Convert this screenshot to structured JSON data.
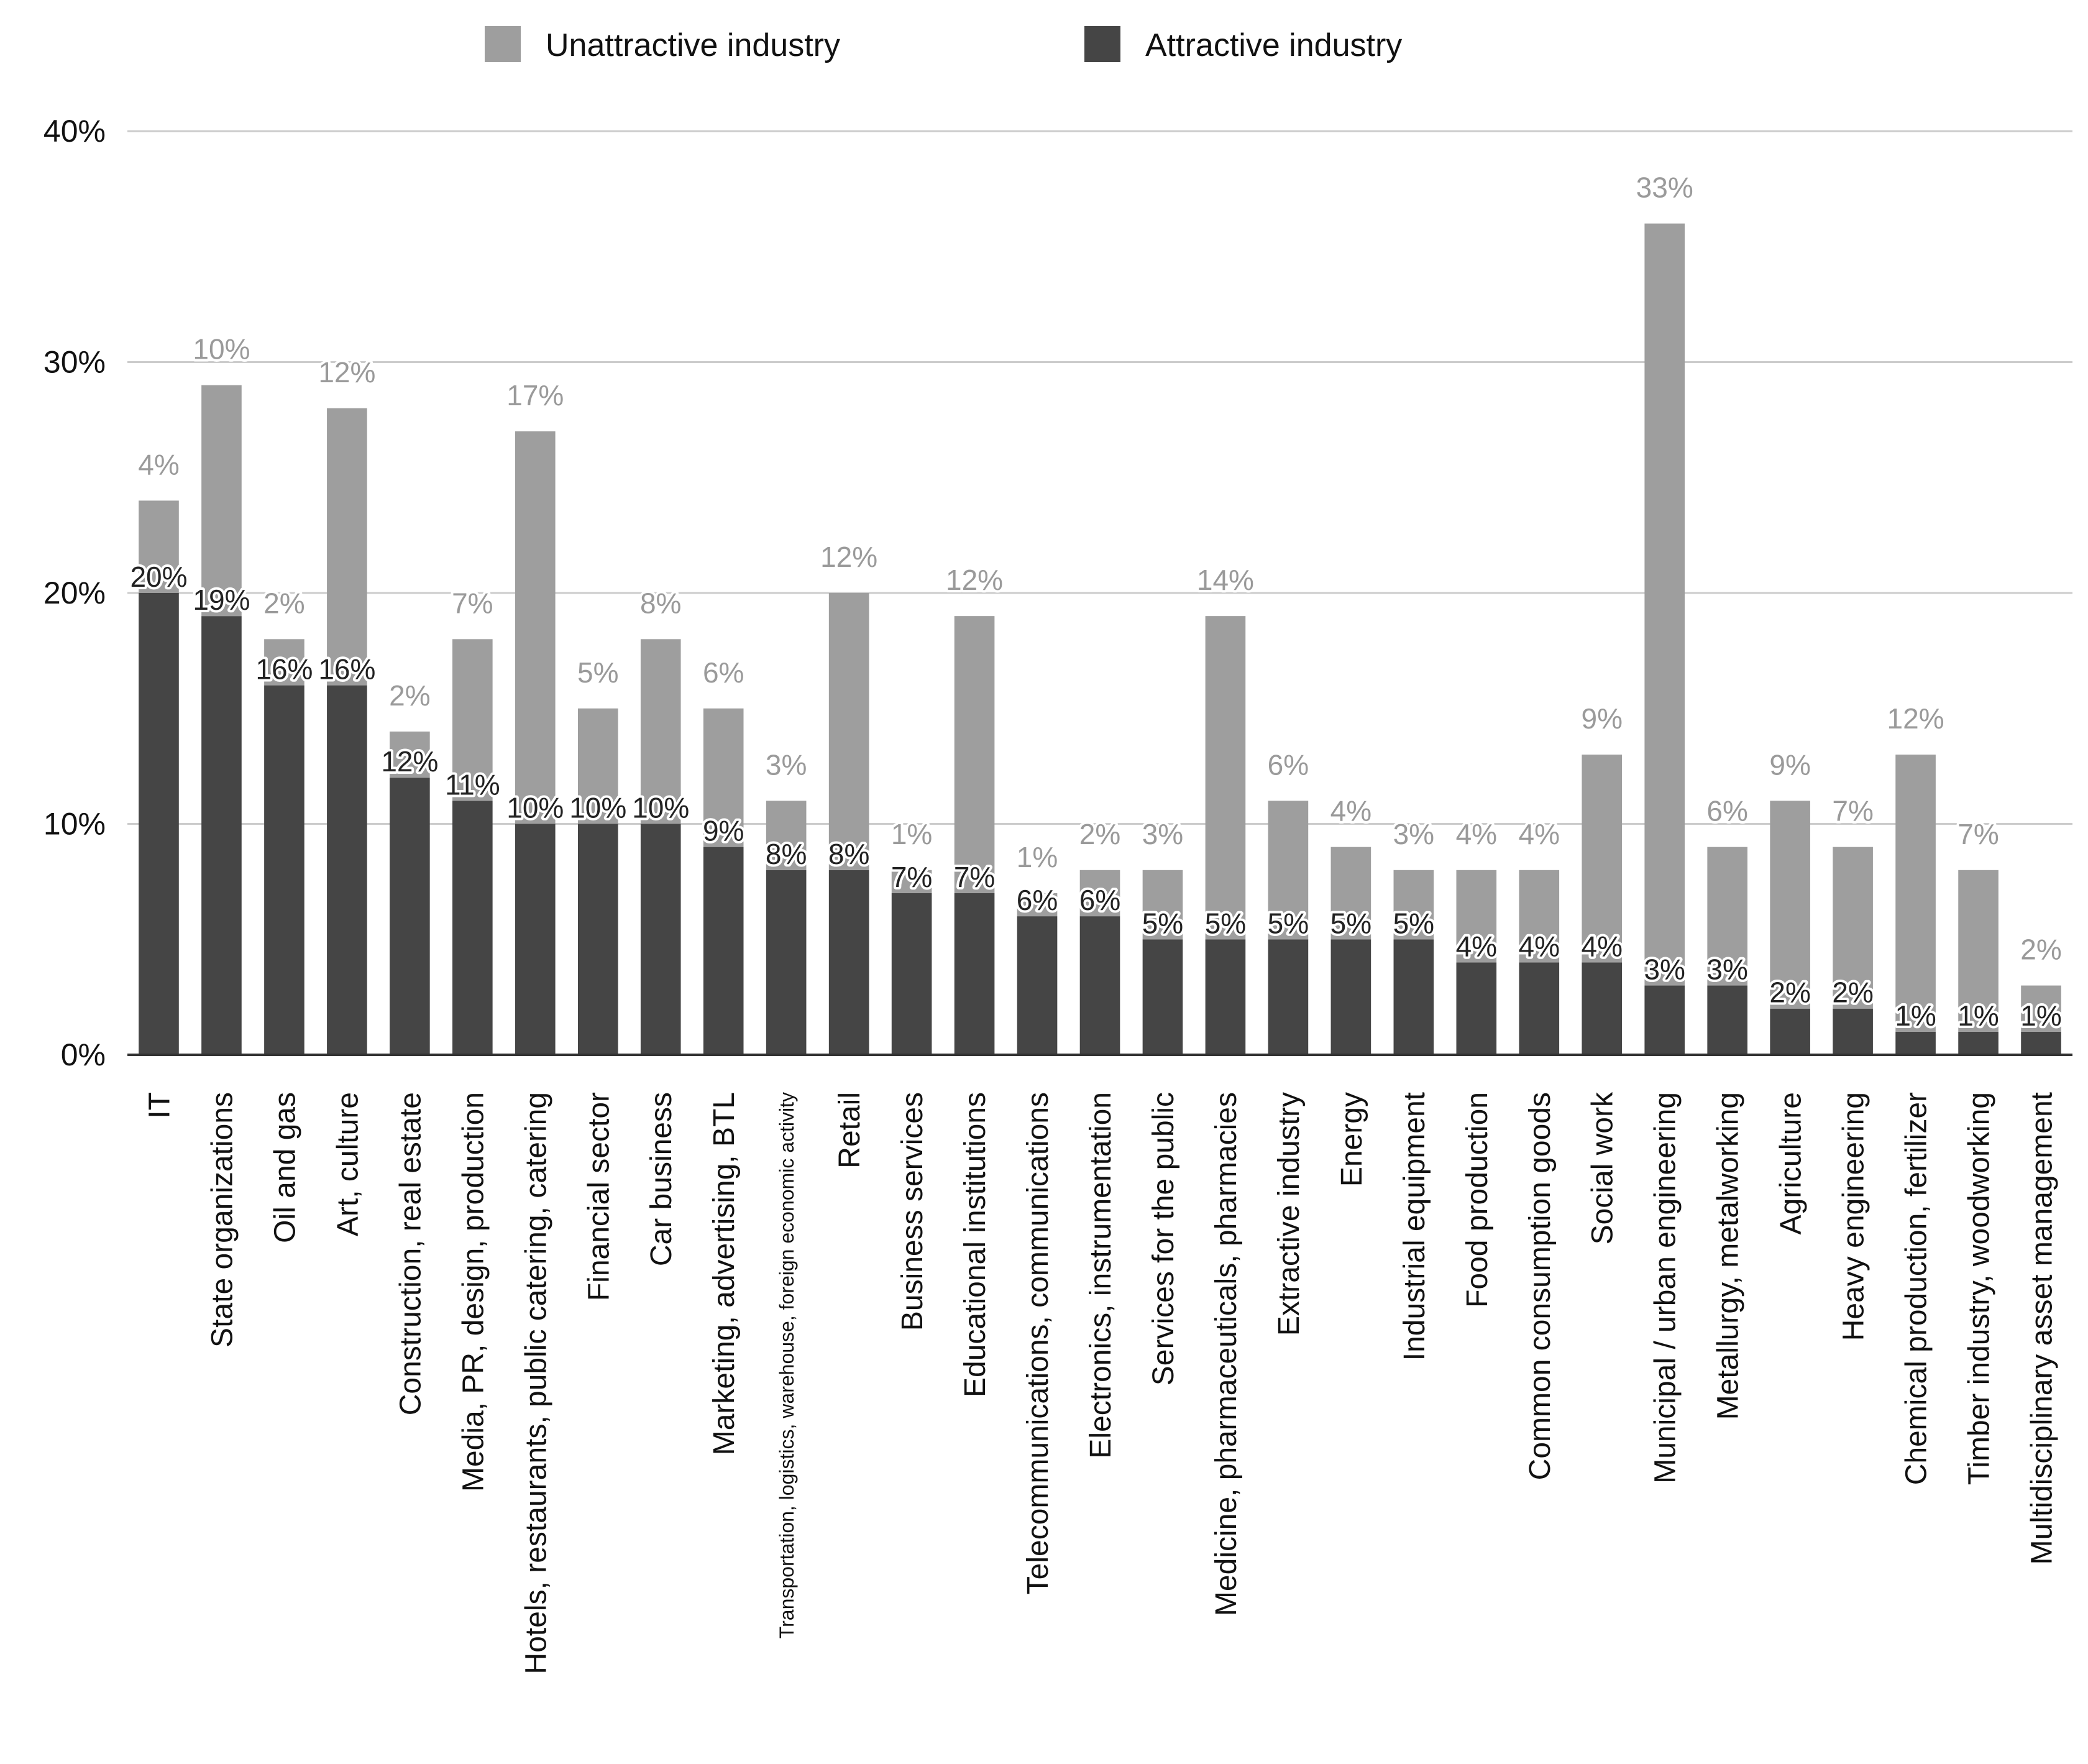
{
  "chart_data": {
    "type": "bar",
    "stacked": true,
    "title": "",
    "xlabel": "",
    "ylabel": "",
    "ylim": [
      0,
      40
    ],
    "y_ticks": [
      0,
      10,
      20,
      30,
      40
    ],
    "y_tick_labels": [
      "0%",
      "10%",
      "20%",
      "30%",
      "40%"
    ],
    "grid": true,
    "legend_position": "top",
    "colors": {
      "attractive": "#454545",
      "unattractive": "#9e9e9e"
    },
    "categories": [
      "IT",
      "State organizations",
      "Oil and gas",
      "Art, culture",
      "Construction, real estate",
      "Media, PR, design, production",
      "Hotels, restaurants, public catering, catering",
      "Financial sector",
      "Car business",
      "Marketing, advertising, BTL",
      "Transportation, logistics, warehouse, foreign economic activity",
      "Retail",
      "Business services",
      "Educational institutions",
      "Telecommunications, communications",
      "Electronics, instrumentation",
      "Services for the public",
      "Medicine, pharmaceuticals, pharmacies",
      "Extractive industry",
      "Energy",
      "Industrial equipment",
      "Food production",
      "Common consumption goods",
      "Social work",
      "Municipal / urban engineering",
      "Metallurgy, metalworking",
      "Agriculture",
      "Heavy engineering",
      "Chemical production, fertilizer",
      "Timber industry, woodworking",
      "Multidisciplinary asset management"
    ],
    "series": [
      {
        "name": "Attractive industry",
        "values": [
          20,
          19,
          16,
          16,
          12,
          11,
          10,
          10,
          10,
          9,
          8,
          8,
          7,
          7,
          6,
          6,
          5,
          5,
          5,
          5,
          5,
          4,
          4,
          4,
          3,
          3,
          2,
          2,
          1,
          1,
          1
        ],
        "labels": [
          "20%",
          "19%",
          "16%",
          "16%",
          "12%",
          "11%",
          "10%",
          "10%",
          "10%",
          "9%",
          "8%",
          "8%",
          "7%",
          "7%",
          "6%",
          "6%",
          "5%",
          "5%",
          "5%",
          "5%",
          "5%",
          "4%",
          "4%",
          "4%",
          "3%",
          "3%",
          "2%",
          "2%",
          "1%",
          "1%",
          "1%"
        ]
      },
      {
        "name": "Unattractive industry",
        "values": [
          4,
          10,
          2,
          12,
          2,
          7,
          17,
          5,
          8,
          6,
          3,
          12,
          1,
          12,
          1,
          2,
          3,
          14,
          6,
          4,
          3,
          4,
          4,
          9,
          33,
          6,
          9,
          7,
          12,
          7,
          2
        ],
        "labels": [
          "4%",
          "10%",
          "2%",
          "12%",
          "2%",
          "7%",
          "17%",
          "5%",
          "8%",
          "6%",
          "3%",
          "12%",
          "1%",
          "12%",
          "1%",
          "2%",
          "3%",
          "14%",
          "6%",
          "4%",
          "3%",
          "4%",
          "4%",
          "9%",
          "33%",
          "6%",
          "9%",
          "7%",
          "12%",
          "7%",
          "2%"
        ]
      }
    ],
    "legend": [
      "Unattractive industry",
      "Attractive industry"
    ]
  }
}
